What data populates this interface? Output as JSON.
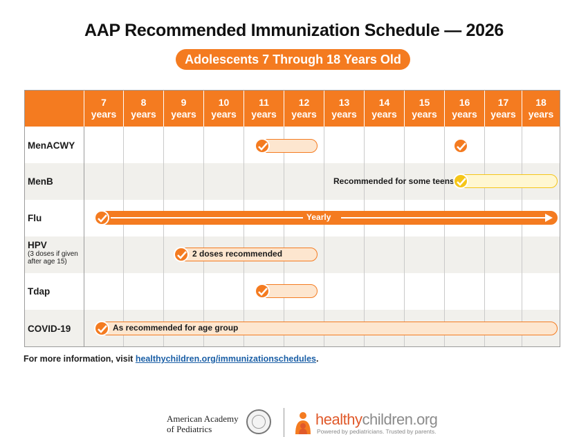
{
  "header": {
    "title": "AAP Recommended Immunization Schedule — 2026",
    "subtitle": "Adolescents 7 Through 18 Years Old"
  },
  "table": {
    "ages": [
      {
        "num": "7",
        "unit": "years"
      },
      {
        "num": "8",
        "unit": "years"
      },
      {
        "num": "9",
        "unit": "years"
      },
      {
        "num": "10",
        "unit": "years"
      },
      {
        "num": "11",
        "unit": "years"
      },
      {
        "num": "12",
        "unit": "years"
      },
      {
        "num": "13",
        "unit": "years"
      },
      {
        "num": "14",
        "unit": "years"
      },
      {
        "num": "15",
        "unit": "years"
      },
      {
        "num": "16",
        "unit": "years"
      },
      {
        "num": "17",
        "unit": "years"
      },
      {
        "num": "18",
        "unit": "years"
      }
    ],
    "vaccines": [
      {
        "name": "MenACWY",
        "note": ""
      },
      {
        "name": "MenB",
        "note": ""
      },
      {
        "name": "Flu",
        "note": ""
      },
      {
        "name": "HPV",
        "note": "(3 doses if given after age 15)"
      },
      {
        "name": "Tdap",
        "note": ""
      },
      {
        "name": "COVID-19",
        "note": ""
      }
    ],
    "schedules": {
      "menacwy_range": "11–12 years",
      "menacwy_booster": "16 years",
      "menb_text": "Recommended for some teens",
      "flu_text": "Yearly",
      "hpv_text": "2 doses recommended",
      "tdap_range": "11–12 years",
      "covid_text": "As recommended for age group"
    }
  },
  "footer": {
    "info_prefix": "For more information, visit ",
    "info_link": "healthychildren.org/immunizationschedules",
    "info_suffix": ".",
    "aap_line1": "American Academy",
    "aap_line2": "of Pediatrics",
    "hc_brand_a": "healthy",
    "hc_brand_b": "children.org",
    "hc_tagline": "Powered by pediatricians. Trusted by parents."
  },
  "colors": {
    "accent": "#f47b20",
    "bar_fill": "#fde6cf",
    "menb_fill": "#fff7d1",
    "menb_accent": "#f5c518",
    "link": "#1b5fa6"
  }
}
